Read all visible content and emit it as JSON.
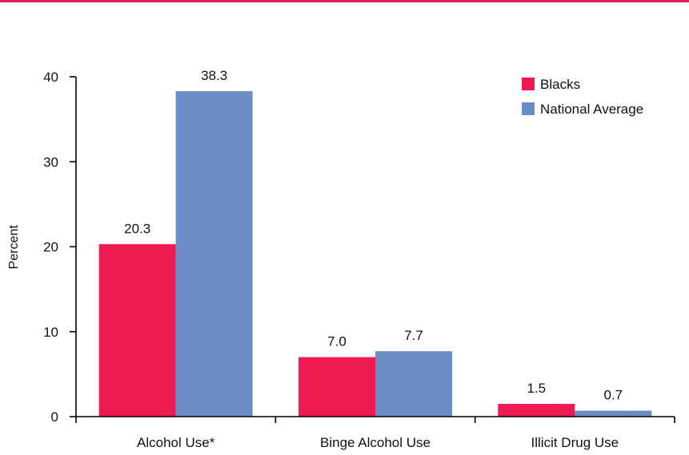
{
  "colors": {
    "top_rule": "#d81f5f",
    "axis": "#000000"
  },
  "chart_data": {
    "type": "bar",
    "title": "",
    "xlabel": "",
    "ylabel": "Percent",
    "ylim": [
      0,
      40
    ],
    "yticks": [
      0,
      10,
      20,
      30,
      40
    ],
    "grid": false,
    "legend_position": "top-right",
    "categories": [
      "Alcohol Use*",
      "Binge Alcohol Use",
      "Illicit Drug Use"
    ],
    "series": [
      {
        "name": "Blacks",
        "color": "#ee1a52",
        "values": [
          20.3,
          7.0,
          1.5
        ],
        "value_labels": [
          "20.3",
          "7.0",
          "1.5"
        ]
      },
      {
        "name": "National Average",
        "color": "#6b8cc4",
        "values": [
          38.3,
          7.7,
          0.7
        ],
        "value_labels": [
          "38.3",
          "7.7",
          "0.7"
        ]
      }
    ]
  }
}
